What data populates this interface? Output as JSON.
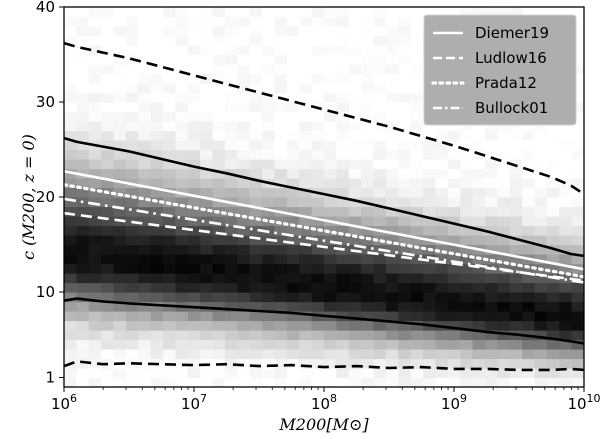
{
  "chart_data": {
    "type": "heatmap",
    "title": "",
    "xlabel": "M200[M⊙]",
    "ylabel": "c (M200, z = 0)",
    "x_scale": "log",
    "xlim": [
      1000000,
      10000000000
    ],
    "ylim": [
      0,
      40
    ],
    "x_ticks": [
      {
        "value": 1000000,
        "base": "10",
        "exp": "6"
      },
      {
        "value": 10000000,
        "base": "10",
        "exp": "7"
      },
      {
        "value": 100000000,
        "base": "10",
        "exp": "8"
      },
      {
        "value": 1000000000,
        "base": "10",
        "exp": "9"
      },
      {
        "value": 10000000000,
        "base": "10",
        "exp": "10"
      }
    ],
    "y_ticks": [
      {
        "value": 1,
        "label": "1"
      },
      {
        "value": 10,
        "label": "10"
      },
      {
        "value": 20,
        "label": "20"
      },
      {
        "value": 30,
        "label": "30"
      },
      {
        "value": 40,
        "label": "40"
      }
    ],
    "grid": false,
    "legend_position": "top-right",
    "density": {
      "description_unit": "log10 M200 grid",
      "mode_x": [
        6,
        10
      ],
      "mode_y": [
        14,
        7
      ]
    },
    "contours": [
      {
        "style": "dashed",
        "x": [
          6.0,
          6.1,
          6.3,
          6.5,
          6.75,
          7.0,
          7.25,
          7.5,
          7.75,
          8.0,
          8.25,
          8.5,
          8.75,
          9.0,
          9.25,
          9.5,
          9.75,
          9.9,
          10.0
        ],
        "y": [
          36.2,
          35.8,
          35.2,
          34.6,
          33.7,
          32.8,
          31.9,
          31.0,
          30.1,
          29.2,
          28.3,
          27.4,
          26.4,
          25.4,
          24.3,
          23.2,
          22.1,
          21.2,
          20.3
        ]
      },
      {
        "style": "solid",
        "x": [
          6.0,
          6.1,
          6.3,
          6.5,
          6.75,
          7.0,
          7.25,
          7.5,
          7.75,
          8.0,
          8.25,
          8.5,
          8.75,
          9.0,
          9.25,
          9.5,
          9.75,
          9.9,
          10.0
        ],
        "y": [
          26.2,
          25.8,
          25.3,
          24.8,
          24.0,
          23.2,
          22.5,
          21.7,
          21.0,
          20.3,
          19.6,
          18.8,
          18.0,
          17.2,
          16.4,
          15.5,
          14.6,
          14.0,
          13.8
        ]
      },
      {
        "style": "solid",
        "x": [
          6.0,
          6.1,
          6.3,
          6.5,
          6.75,
          7.0,
          7.25,
          7.5,
          7.75,
          8.0,
          8.25,
          8.5,
          8.75,
          9.0,
          9.25,
          9.5,
          9.75,
          9.9,
          10.0
        ],
        "y": [
          9.1,
          9.3,
          9.0,
          8.8,
          8.6,
          8.4,
          8.2,
          8.0,
          7.8,
          7.5,
          7.2,
          6.9,
          6.6,
          6.2,
          5.8,
          5.5,
          5.1,
          4.8,
          4.6
        ]
      },
      {
        "style": "dashed",
        "x": [
          6.0,
          6.1,
          6.3,
          6.5,
          6.75,
          7.0,
          7.25,
          7.5,
          7.75,
          8.0,
          8.25,
          8.5,
          8.75,
          9.0,
          9.25,
          9.5,
          9.75,
          9.9,
          10.0
        ],
        "y": [
          2.2,
          2.7,
          2.4,
          2.5,
          2.4,
          2.3,
          2.4,
          2.2,
          2.3,
          2.1,
          2.2,
          2.0,
          2.1,
          1.9,
          1.9,
          1.8,
          1.8,
          1.9,
          1.8
        ]
      }
    ],
    "series": [
      {
        "name": "Diemer19",
        "style": "solid",
        "x": [
          6,
          10
        ],
        "y": [
          22.7,
          12.4
        ]
      },
      {
        "name": "Ludlow16",
        "style": "dashed",
        "x": [
          6,
          10
        ],
        "y": [
          18.3,
          11.2
        ]
      },
      {
        "name": "Prada12",
        "style": "dotted",
        "x": [
          6,
          10
        ],
        "y": [
          21.3,
          11.6
        ]
      },
      {
        "name": "Bullock01",
        "style": "dashdot",
        "x": [
          6,
          10
        ],
        "y": [
          19.8,
          11.0
        ]
      }
    ]
  }
}
